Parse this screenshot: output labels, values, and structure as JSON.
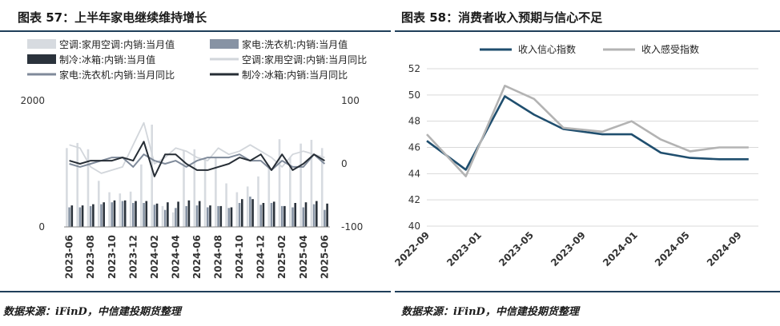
{
  "left": {
    "title": "图表 57：上半年家电继续维持增长",
    "source": "数据来源：iFinD，中信建投期货整理",
    "chart_data": {
      "type": "bar",
      "categories": [
        "2023-06",
        "2023-07",
        "2023-08",
        "2023-09",
        "2023-10",
        "2023-11",
        "2023-12",
        "2024-01",
        "2024-02",
        "2024-03",
        "2024-04",
        "2024-05",
        "2024-06",
        "2024-07",
        "2024-08",
        "2024-09",
        "2024-10",
        "2024-11",
        "2024-12",
        "2025-01",
        "2025-02",
        "2025-03",
        "2025-04",
        "2025-05",
        "2025-06"
      ],
      "x_tick_labels": [
        "2023-06",
        "2023-08",
        "2023-10",
        "2023-12",
        "2024-02",
        "2024-04",
        "2024-06",
        "2024-08",
        "2024-10",
        "2024-12",
        "2025-02",
        "2025-04",
        "2025-06"
      ],
      "y_left": {
        "ylim": [
          0,
          2000
        ],
        "ticks": [
          "0",
          "2000"
        ]
      },
      "y_right": {
        "ylim": [
          -100,
          100
        ],
        "ticks": [
          "-100",
          "0",
          "100"
        ]
      },
      "legend_placement": "top",
      "bar_series": [
        {
          "name": "空调:家用空调:内销:当月值",
          "color": "#d7dbe0",
          "values": [
            1250,
            1330,
            1230,
            730,
            550,
            530,
            560,
            990,
            1620,
            330,
            230,
            1210,
            1230,
            1080,
            1100,
            690,
            550,
            640,
            800,
            980,
            1390,
            1100,
            1320,
            1380,
            1250
          ]
        },
        {
          "name": "家电:洗衣机:内销:当月值",
          "color": "#8793a4",
          "values": [
            310,
            310,
            330,
            360,
            390,
            410,
            380,
            380,
            350,
            270,
            300,
            330,
            340,
            310,
            330,
            300,
            380,
            480,
            350,
            380,
            330,
            310,
            310,
            360,
            270
          ]
        },
        {
          "name": "制冷:冰箱:内销:当月值",
          "color": "#2b333c",
          "values": [
            340,
            340,
            360,
            390,
            420,
            420,
            410,
            410,
            370,
            390,
            400,
            420,
            410,
            340,
            330,
            310,
            440,
            440,
            380,
            400,
            330,
            380,
            390,
            410,
            370
          ]
        }
      ],
      "line_series": [
        {
          "name": "空调:家用空调:内销:当月同比",
          "color": "#d2d6db",
          "values": [
            30,
            25,
            -5,
            -15,
            -10,
            -5,
            30,
            65,
            0,
            10,
            25,
            20,
            10,
            5,
            25,
            15,
            20,
            30,
            20,
            10,
            -5,
            15,
            20,
            15,
            10
          ]
        },
        {
          "name": "家电:洗衣机:内销:当月同比",
          "color": "#7f8a9a",
          "values": [
            0,
            -5,
            0,
            5,
            10,
            10,
            -5,
            15,
            5,
            0,
            5,
            -5,
            5,
            10,
            10,
            10,
            15,
            5,
            5,
            -10,
            5,
            -5,
            -5,
            15,
            0
          ]
        },
        {
          "name": "制冷:冰箱:内销:当月同比",
          "color": "#262d35",
          "values": [
            5,
            0,
            5,
            5,
            5,
            10,
            5,
            35,
            -20,
            15,
            15,
            0,
            -10,
            -10,
            -5,
            0,
            10,
            5,
            15,
            -10,
            15,
            -10,
            0,
            15,
            5
          ]
        }
      ]
    }
  },
  "right": {
    "title": "图表 58：消费者收入预期与信心不足",
    "source": "数据来源：iFinD，中信建投期货整理",
    "chart_data": {
      "type": "line",
      "x_tick_labels": [
        "2022-09",
        "2023-01",
        "2023-05",
        "2023-09",
        "2024-01",
        "2024-05",
        "2024-09"
      ],
      "ylim": [
        40,
        52
      ],
      "y_ticks": [
        "40",
        "42",
        "44",
        "46",
        "48",
        "50",
        "52"
      ],
      "grid": true,
      "legend_placement": "top",
      "series": [
        {
          "name": "收入信心指数",
          "color": "#1f4e6e",
          "x": [
            0,
            2,
            4,
            5.5,
            7,
            9,
            10.5,
            12,
            13.5,
            15,
            16.5
          ],
          "values": [
            46.5,
            44.3,
            49.9,
            48.5,
            47.4,
            47.0,
            47.0,
            45.6,
            45.2,
            45.1,
            45.1
          ]
        },
        {
          "name": "收入感受指数",
          "color": "#b3b3b3",
          "x": [
            0,
            2,
            4,
            5.5,
            7,
            9,
            10.5,
            12,
            13.5,
            15,
            16.5
          ],
          "values": [
            47.0,
            43.8,
            50.7,
            49.7,
            47.5,
            47.2,
            48.0,
            46.6,
            45.7,
            46.0,
            46.0
          ]
        }
      ],
      "x_domain_index": [
        0,
        17
      ],
      "x_tick_index": [
        0,
        4,
        8,
        12,
        16,
        20,
        24
      ],
      "x_tick_index_scale": 0.6667
    }
  }
}
